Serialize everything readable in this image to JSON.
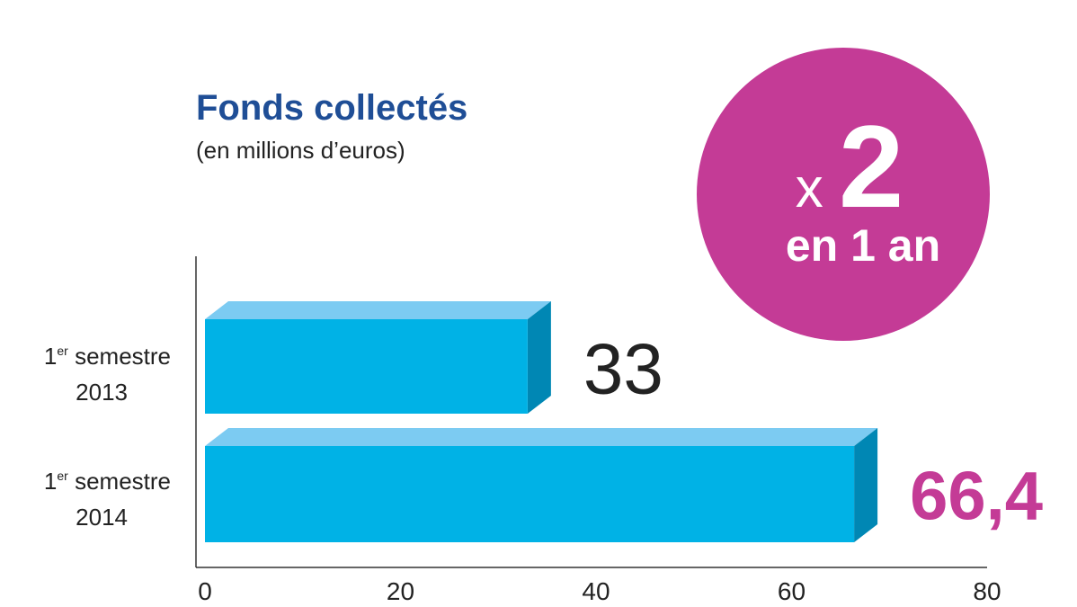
{
  "badge": {
    "multiplier_prefix": "x",
    "multiplier_value": "2",
    "caption": "en 1 an",
    "color": "#c43b96"
  },
  "chart_data": {
    "type": "bar",
    "orientation": "horizontal",
    "title": "Fonds collectés",
    "subtitle": "(en millions d’euros)",
    "categories": [
      {
        "ordinal": "1",
        "suffix": "er",
        "label": "semestre",
        "year": "2013"
      },
      {
        "ordinal": "1",
        "suffix": "er",
        "label": "semestre",
        "year": "2014"
      }
    ],
    "values": [
      33,
      66.4
    ],
    "value_labels": [
      "33",
      "66,4"
    ],
    "value_label_colors": [
      "#222222",
      "#c43b96"
    ],
    "xlim": [
      0,
      80
    ],
    "xticks": [
      "0",
      "20",
      "40",
      "60",
      "80"
    ],
    "bar_colors": {
      "front": "#00b2e6",
      "top": "#7ccbf2",
      "side": "#0087b4"
    },
    "grid": false,
    "legend": "none"
  }
}
